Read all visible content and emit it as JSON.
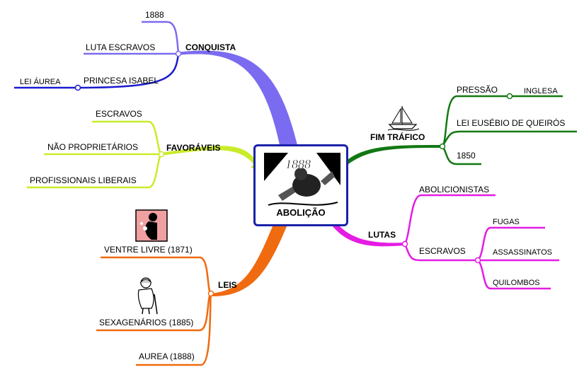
{
  "center": {
    "title": "ABOLIÇÃO",
    "image": "abolition-illustration-1888"
  },
  "branches": {
    "conquista": {
      "label": "CONQUISTA",
      "color": "#7b6bf0",
      "items": {
        "year": "1888",
        "luta": "LUTA ESCRAVOS",
        "princesa": "PRINCESA ISABEL",
        "lei_aurea": "LEI ÁUREA"
      }
    },
    "favoraveis": {
      "label": "FAVORÁVEIS",
      "color": "#c9ec2a",
      "items": {
        "escravos": "ESCRAVOS",
        "nao_proprietarios": "NÃO PROPRIETÁRIOS",
        "profissionais": "PROFISSIONAIS LIBERAIS"
      }
    },
    "leis": {
      "label": "LEIS",
      "color": "#f06a10",
      "items": {
        "ventre": "VENTRE LIVRE (1871)",
        "sexagenarios": "SEXAGENÁRIOS (1885)",
        "aurea": "AUREA (1888)"
      }
    },
    "fim_trafico": {
      "label": "FIM TRÁFICO",
      "color": "#127812",
      "items": {
        "pressao": "PRESSÃO",
        "inglesa": "INGLESA",
        "eusebio": "LEI EUSÉBIO DE QUEIRÓS",
        "year": "1850"
      }
    },
    "lutas": {
      "label": "LUTAS",
      "color": "#e41ce4",
      "items": {
        "abolicionistas": "ABOLICIONISTAS",
        "escravos": "ESCRAVOS",
        "fugas": "FUGAS",
        "assassinatos": "ASSASSINATOS",
        "quilombos": "QUILOMBOS"
      }
    }
  },
  "icons": [
    "ship-icon",
    "pregnant-woman-icon",
    "elderly-person-icon"
  ]
}
